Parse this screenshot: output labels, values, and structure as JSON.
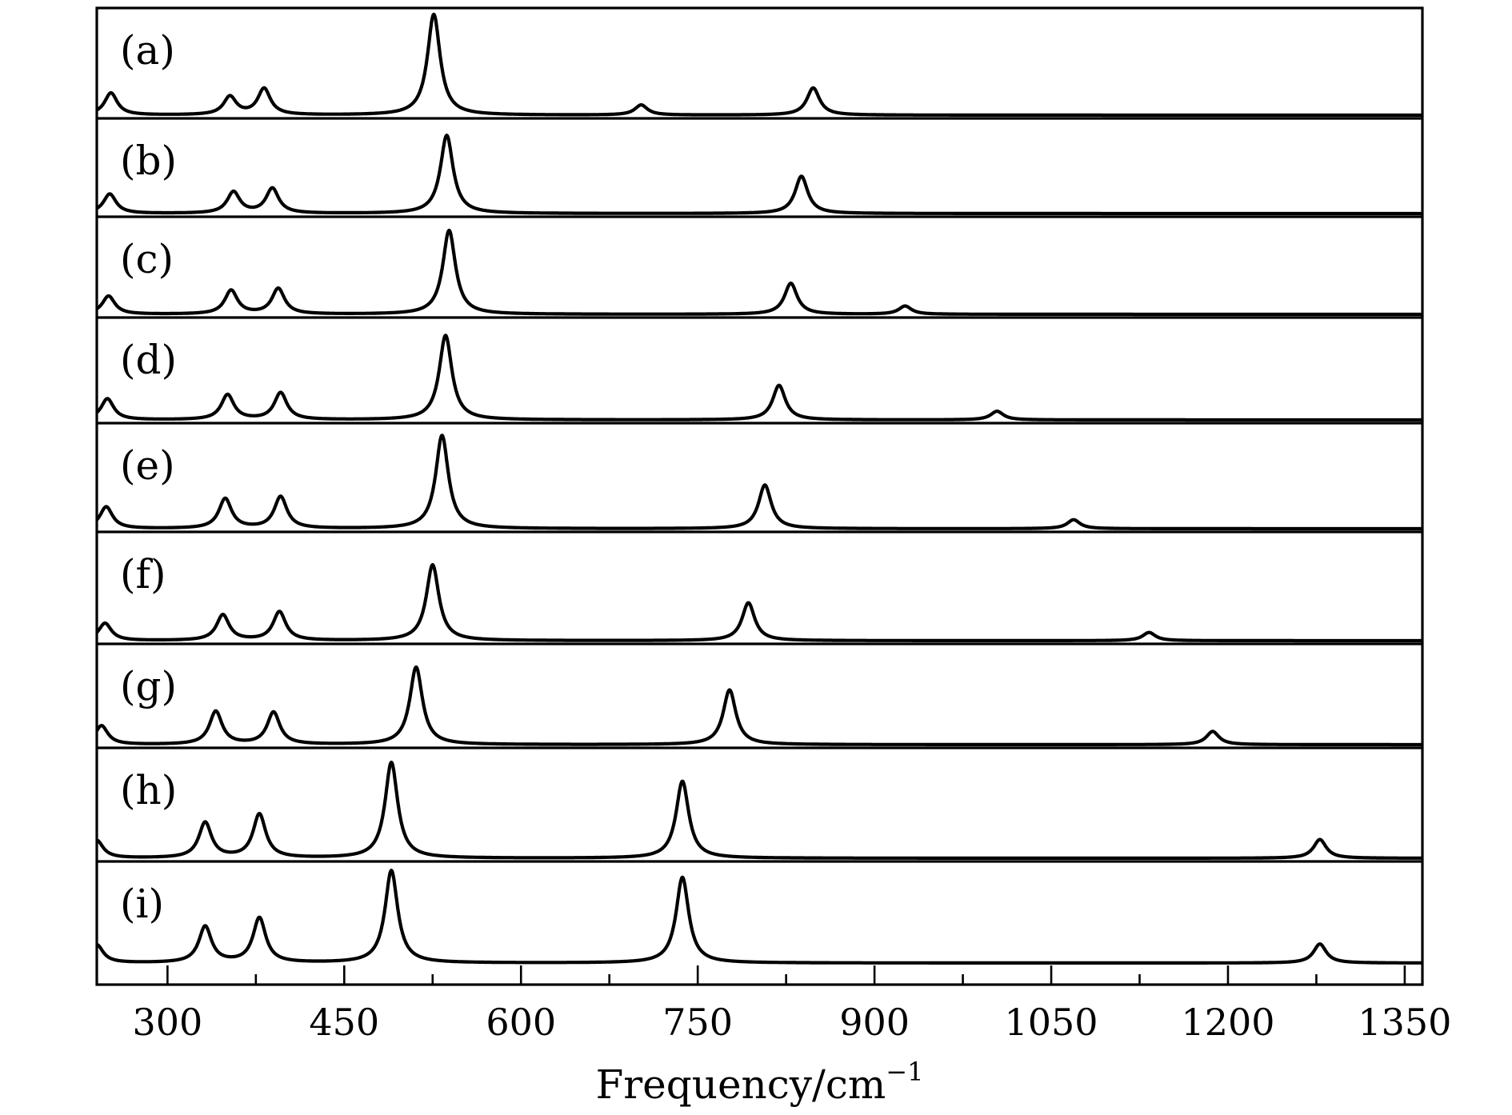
{
  "chart_data": {
    "type": "line",
    "xlabel": "Frequency/cm",
    "xlabel_superscript": "−1",
    "xlim": [
      240,
      1365
    ],
    "x_ticks": [
      300,
      450,
      600,
      750,
      900,
      1050,
      1200,
      1350
    ],
    "x_tick_labels": [
      "300",
      "450",
      "600",
      "750",
      "900",
      "1050",
      "1200",
      "1350"
    ],
    "x_minor_tick_step": 75,
    "y_ticks": false,
    "grid": false,
    "legend": "none",
    "series": [
      {
        "label": "(a)",
        "peaks": [
          [
            252,
            0.22
          ],
          [
            353,
            0.18
          ],
          [
            382,
            0.26
          ],
          [
            526,
            1.0
          ],
          [
            702,
            0.1
          ],
          [
            848,
            0.27
          ]
        ]
      },
      {
        "label": "(b)",
        "peaks": [
          [
            251,
            0.22
          ],
          [
            356,
            0.24
          ],
          [
            389,
            0.28
          ],
          [
            537,
            0.88
          ],
          [
            838,
            0.42
          ]
        ]
      },
      {
        "label": "(c)",
        "peaks": [
          [
            250,
            0.2
          ],
          [
            354,
            0.26
          ],
          [
            394,
            0.28
          ],
          [
            539,
            0.92
          ],
          [
            829,
            0.34
          ],
          [
            926,
            0.09
          ]
        ]
      },
      {
        "label": "(d)",
        "peaks": [
          [
            249,
            0.22
          ],
          [
            351,
            0.26
          ],
          [
            396,
            0.28
          ],
          [
            536,
            0.88
          ],
          [
            819,
            0.36
          ],
          [
            1004,
            0.09
          ]
        ]
      },
      {
        "label": "(e)",
        "peaks": [
          [
            248,
            0.22
          ],
          [
            349,
            0.3
          ],
          [
            396,
            0.32
          ],
          [
            533,
            0.94
          ],
          [
            807,
            0.44
          ],
          [
            1069,
            0.09
          ]
        ]
      },
      {
        "label": "(f)",
        "peaks": [
          [
            247,
            0.17
          ],
          [
            347,
            0.25
          ],
          [
            395,
            0.28
          ],
          [
            525,
            0.74
          ],
          [
            793,
            0.37
          ],
          [
            1133,
            0.08
          ]
        ]
      },
      {
        "label": "(g)",
        "peaks": [
          [
            244,
            0.2
          ],
          [
            341,
            0.35
          ],
          [
            390,
            0.34
          ],
          [
            511,
            0.82
          ],
          [
            777,
            0.58
          ],
          [
            1187,
            0.14
          ]
        ]
      },
      {
        "label": "(h)",
        "peaks": [
          [
            240,
            0.17
          ],
          [
            332,
            0.34
          ],
          [
            378,
            0.42
          ],
          [
            490,
            0.92
          ],
          [
            737,
            0.74
          ],
          [
            1278,
            0.18
          ]
        ]
      },
      {
        "label": "(i)",
        "peaks": [
          [
            240,
            0.19
          ],
          [
            332,
            0.38
          ],
          [
            378,
            0.47
          ],
          [
            490,
            0.97
          ],
          [
            737,
            0.9
          ],
          [
            1278,
            0.2
          ]
        ]
      }
    ]
  }
}
